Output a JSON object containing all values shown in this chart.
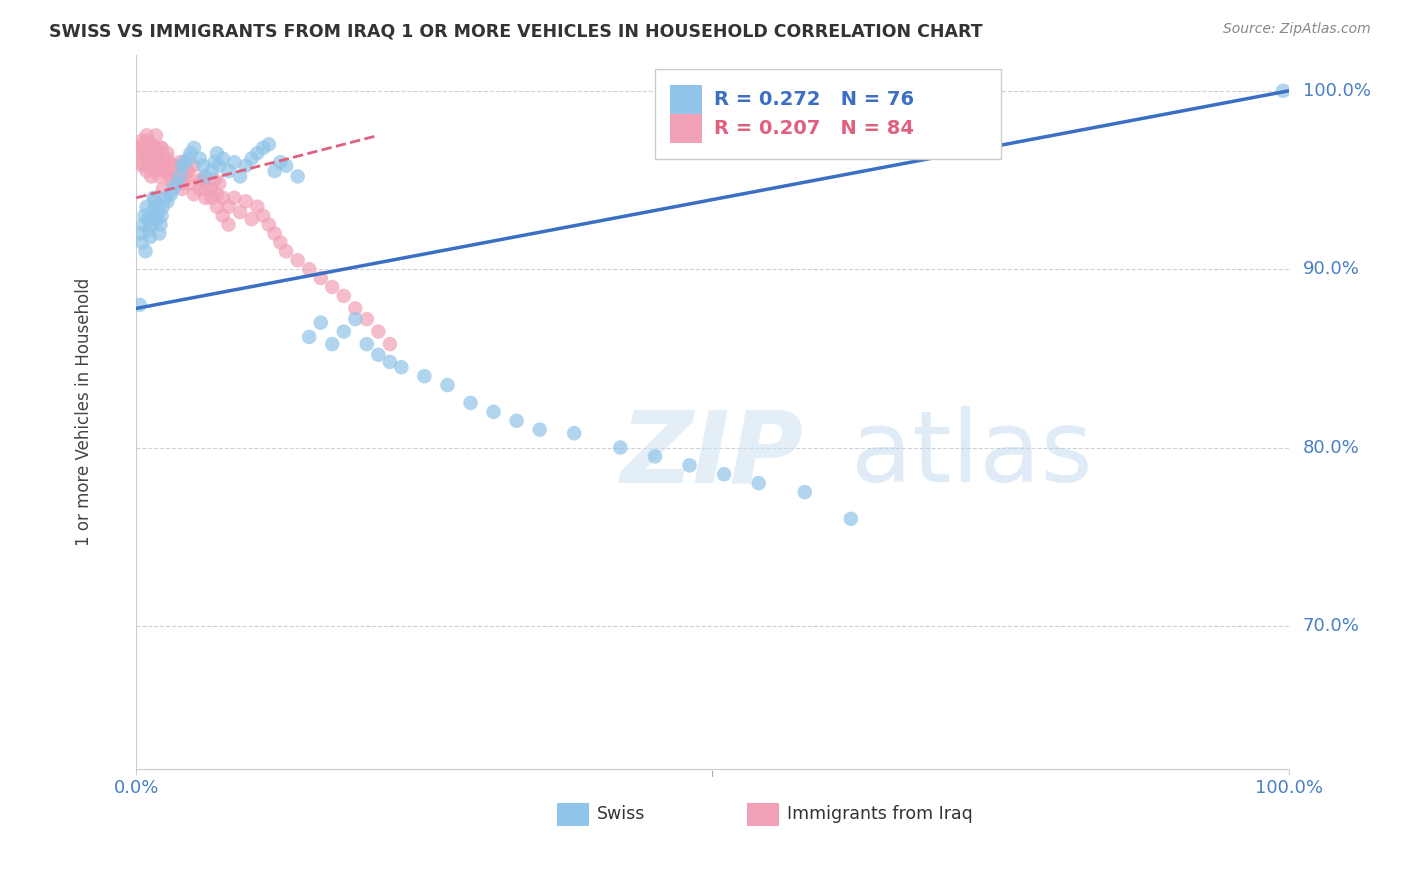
{
  "title": "SWISS VS IMMIGRANTS FROM IRAQ 1 OR MORE VEHICLES IN HOUSEHOLD CORRELATION CHART",
  "source": "Source: ZipAtlas.com",
  "ylabel": "1 or more Vehicles in Household",
  "legend_swiss": "Swiss",
  "legend_iraq": "Immigrants from Iraq",
  "swiss_R": 0.272,
  "swiss_N": 76,
  "iraq_R": 0.207,
  "iraq_N": 84,
  "swiss_color": "#90c4e8",
  "iraq_color": "#f2a0b5",
  "swiss_line_color": "#3a6fc4",
  "iraq_line_color": "#e06080",
  "watermark_zip": "ZIP",
  "watermark_atlas": "atlas",
  "xlim": [
    0.0,
    1.0
  ],
  "ylim": [
    0.62,
    1.02
  ],
  "grid_color": "#d0d0d8",
  "bg_color": "#ffffff",
  "swiss_x": [
    0.003,
    0.004,
    0.005,
    0.006,
    0.007,
    0.008,
    0.009,
    0.01,
    0.011,
    0.012,
    0.013,
    0.014,
    0.015,
    0.016,
    0.017,
    0.018,
    0.019,
    0.02,
    0.021,
    0.022,
    0.023,
    0.025,
    0.027,
    0.03,
    0.032,
    0.035,
    0.038,
    0.04,
    0.042,
    0.045,
    0.047,
    0.05,
    0.055,
    0.058,
    0.06,
    0.065,
    0.068,
    0.07,
    0.072,
    0.075,
    0.08,
    0.085,
    0.09,
    0.095,
    0.1,
    0.105,
    0.11,
    0.115,
    0.12,
    0.125,
    0.13,
    0.14,
    0.15,
    0.16,
    0.17,
    0.18,
    0.19,
    0.2,
    0.21,
    0.22,
    0.23,
    0.25,
    0.27,
    0.29,
    0.31,
    0.33,
    0.35,
    0.38,
    0.42,
    0.45,
    0.48,
    0.51,
    0.54,
    0.58,
    0.62,
    0.995
  ],
  "swiss_y": [
    0.88,
    0.92,
    0.915,
    0.925,
    0.93,
    0.91,
    0.935,
    0.928,
    0.922,
    0.918,
    0.925,
    0.932,
    0.94,
    0.938,
    0.935,
    0.928,
    0.932,
    0.92,
    0.925,
    0.93,
    0.935,
    0.94,
    0.938,
    0.942,
    0.945,
    0.948,
    0.952,
    0.958,
    0.96,
    0.962,
    0.965,
    0.968,
    0.962,
    0.958,
    0.952,
    0.955,
    0.96,
    0.965,
    0.958,
    0.962,
    0.955,
    0.96,
    0.952,
    0.958,
    0.962,
    0.965,
    0.968,
    0.97,
    0.955,
    0.96,
    0.958,
    0.952,
    0.862,
    0.87,
    0.858,
    0.865,
    0.872,
    0.858,
    0.852,
    0.848,
    0.845,
    0.84,
    0.835,
    0.825,
    0.82,
    0.815,
    0.81,
    0.808,
    0.8,
    0.795,
    0.79,
    0.785,
    0.78,
    0.775,
    0.76,
    1.0
  ],
  "iraq_x": [
    0.003,
    0.004,
    0.005,
    0.006,
    0.007,
    0.008,
    0.009,
    0.01,
    0.011,
    0.012,
    0.013,
    0.014,
    0.015,
    0.016,
    0.017,
    0.018,
    0.019,
    0.02,
    0.021,
    0.022,
    0.023,
    0.025,
    0.027,
    0.03,
    0.032,
    0.035,
    0.038,
    0.04,
    0.042,
    0.045,
    0.047,
    0.05,
    0.055,
    0.058,
    0.06,
    0.065,
    0.068,
    0.07,
    0.072,
    0.075,
    0.08,
    0.085,
    0.09,
    0.095,
    0.1,
    0.105,
    0.11,
    0.115,
    0.12,
    0.125,
    0.13,
    0.14,
    0.15,
    0.16,
    0.17,
    0.18,
    0.19,
    0.2,
    0.21,
    0.22,
    0.003,
    0.005,
    0.007,
    0.009,
    0.011,
    0.013,
    0.015,
    0.017,
    0.019,
    0.021,
    0.023,
    0.025,
    0.027,
    0.03,
    0.035,
    0.04,
    0.045,
    0.05,
    0.055,
    0.06,
    0.065,
    0.07,
    0.075,
    0.08
  ],
  "iraq_y": [
    0.96,
    0.965,
    0.958,
    0.97,
    0.962,
    0.968,
    0.955,
    0.972,
    0.958,
    0.965,
    0.952,
    0.96,
    0.968,
    0.955,
    0.962,
    0.958,
    0.965,
    0.952,
    0.96,
    0.968,
    0.945,
    0.955,
    0.962,
    0.95,
    0.958,
    0.952,
    0.96,
    0.945,
    0.95,
    0.955,
    0.948,
    0.958,
    0.945,
    0.95,
    0.94,
    0.945,
    0.95,
    0.942,
    0.948,
    0.94,
    0.935,
    0.94,
    0.932,
    0.938,
    0.928,
    0.935,
    0.93,
    0.925,
    0.92,
    0.915,
    0.91,
    0.905,
    0.9,
    0.895,
    0.89,
    0.885,
    0.878,
    0.872,
    0.865,
    0.858,
    0.968,
    0.972,
    0.965,
    0.975,
    0.962,
    0.97,
    0.968,
    0.975,
    0.962,
    0.968,
    0.955,
    0.96,
    0.965,
    0.952,
    0.958,
    0.948,
    0.955,
    0.942,
    0.95,
    0.945,
    0.94,
    0.935,
    0.93,
    0.925
  ]
}
